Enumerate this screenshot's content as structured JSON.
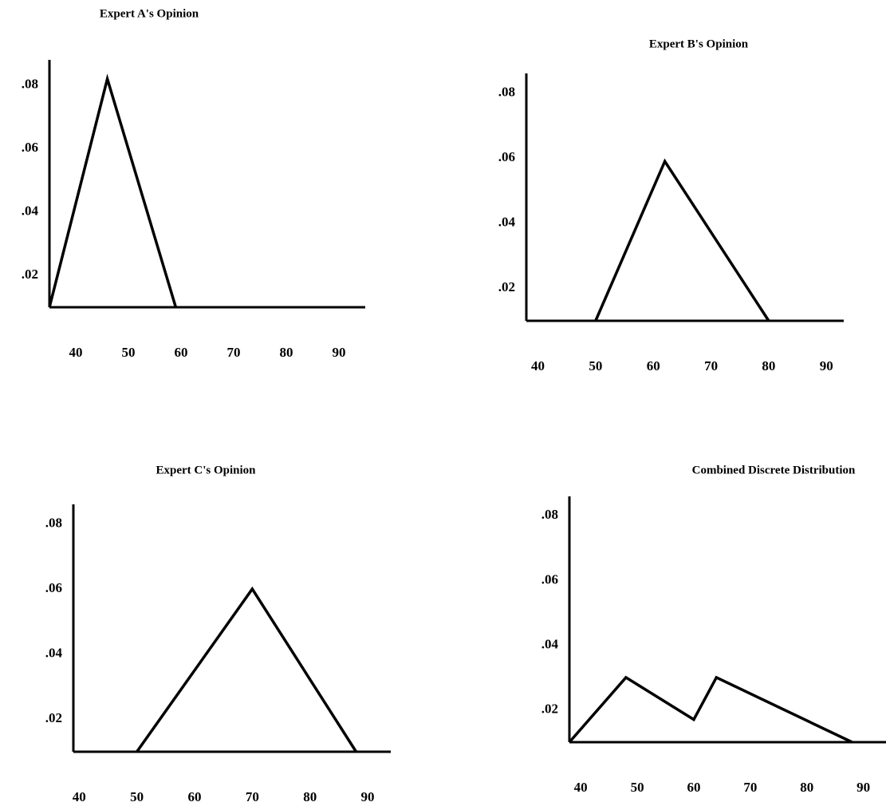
{
  "chart_data": [
    {
      "type": "line",
      "title": "Expert A's Opinion",
      "x": [
        35,
        46,
        59
      ],
      "values": [
        0.01,
        0.082,
        0.01
      ],
      "xlim": [
        35,
        95
      ],
      "xticks": [
        40,
        50,
        60,
        70,
        80,
        90
      ],
      "ylim": [
        0.01,
        0.088
      ],
      "yticks": [
        {
          "value": 0.02,
          "label": ".02"
        },
        {
          "value": 0.04,
          "label": ".04"
        },
        {
          "value": 0.06,
          "label": ".06"
        },
        {
          "value": 0.08,
          "label": ".08"
        }
      ],
      "color": "#000000",
      "grid": false
    },
    {
      "type": "line",
      "title": "Expert B's Opinion",
      "x": [
        50,
        62,
        80
      ],
      "values": [
        0.01,
        0.059,
        0.01
      ],
      "xlim": [
        38,
        93
      ],
      "xticks": [
        40,
        50,
        60,
        70,
        80,
        90
      ],
      "ylim": [
        0.01,
        0.086
      ],
      "yticks": [
        {
          "value": 0.02,
          "label": ".02"
        },
        {
          "value": 0.04,
          "label": ".04"
        },
        {
          "value": 0.06,
          "label": ".06"
        },
        {
          "value": 0.08,
          "label": ".08"
        }
      ],
      "color": "#000000",
      "grid": false
    },
    {
      "type": "line",
      "title": "Expert C's Opinion",
      "x": [
        50,
        70,
        88
      ],
      "values": [
        0.01,
        0.06,
        0.01
      ],
      "xlim": [
        39,
        94
      ],
      "xticks": [
        40,
        50,
        60,
        70,
        80,
        90
      ],
      "ylim": [
        0.01,
        0.086
      ],
      "yticks": [
        {
          "value": 0.02,
          "label": ".02"
        },
        {
          "value": 0.04,
          "label": ".04"
        },
        {
          "value": 0.06,
          "label": ".06"
        },
        {
          "value": 0.08,
          "label": ".08"
        }
      ],
      "color": "#000000",
      "grid": false
    },
    {
      "type": "line",
      "title": "Combined Discrete Distribution",
      "x": [
        38,
        48,
        60,
        64,
        88
      ],
      "values": [
        0.01,
        0.03,
        0.017,
        0.03,
        0.01
      ],
      "xlim": [
        38,
        94
      ],
      "xticks": [
        40,
        50,
        60,
        70,
        80,
        90
      ],
      "ylim": [
        0.01,
        0.086
      ],
      "yticks": [
        {
          "value": 0.02,
          "label": ".02"
        },
        {
          "value": 0.04,
          "label": ".04"
        },
        {
          "value": 0.06,
          "label": ".06"
        },
        {
          "value": 0.08,
          "label": ".08"
        }
      ],
      "color": "#000000",
      "grid": false
    }
  ]
}
